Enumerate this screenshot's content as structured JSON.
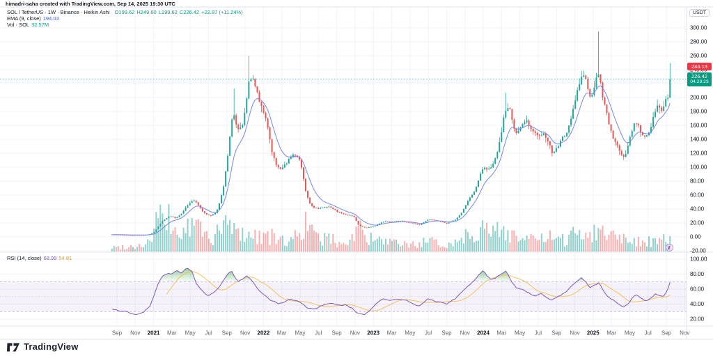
{
  "attribution": "himadri-saha created with TradingView.com, Sep 14, 2025 19:30 UTC",
  "legend": {
    "title": "SOL / TetherUS · 1W · Binance · Heikin Ashi",
    "ohlc": {
      "o_label": "O",
      "o_value": "199.62",
      "h_label": "H",
      "h_value": "249.60",
      "l_label": "L",
      "l_value": "199.62",
      "c_label": "C",
      "c_value": "226.42",
      "change": "+22.87 (+11.24%)"
    },
    "ema": {
      "label": "EMA (9, close)",
      "value": "194.03"
    },
    "vol": {
      "label": "Vol · SOL",
      "value": "32.57M"
    }
  },
  "rsi_legend": {
    "label": "RSI (14, close)",
    "value": "68.99",
    "ma_value": "54.81"
  },
  "price_axis": {
    "currency": "USDT",
    "ticks": [
      "300.00",
      "280.00",
      "260.00",
      "240.00",
      "220.00",
      "200.00",
      "180.00",
      "160.00",
      "140.00",
      "120.00",
      "100.00",
      "80.00",
      "60.00",
      "40.00",
      "20.00",
      "0.00",
      "-20.00"
    ],
    "last_price_tag": "244.13",
    "current_tag": "226.42",
    "countdown": "04:29:23"
  },
  "rsi_axis": {
    "ticks": [
      "100.00",
      "80.00",
      "60.00",
      "40.00",
      "20.00"
    ]
  },
  "time_axis": {
    "labels": [
      {
        "label": "Sep",
        "m": 1
      },
      {
        "label": "Nov",
        "m": 3
      },
      {
        "label": "2021",
        "m": 5,
        "bold": true
      },
      {
        "label": "Mar",
        "m": 7
      },
      {
        "label": "May",
        "m": 9
      },
      {
        "label": "Jul",
        "m": 11
      },
      {
        "label": "Sep",
        "m": 13
      },
      {
        "label": "Nov",
        "m": 15
      },
      {
        "label": "2022",
        "m": 17,
        "bold": true
      },
      {
        "label": "Mar",
        "m": 19
      },
      {
        "label": "May",
        "m": 21
      },
      {
        "label": "Jul",
        "m": 23
      },
      {
        "label": "Sep",
        "m": 25
      },
      {
        "label": "Nov",
        "m": 27
      },
      {
        "label": "2023",
        "m": 29,
        "bold": true
      },
      {
        "label": "Mar",
        "m": 31
      },
      {
        "label": "May",
        "m": 33
      },
      {
        "label": "Jul",
        "m": 35
      },
      {
        "label": "Sep",
        "m": 37
      },
      {
        "label": "Nov",
        "m": 39
      },
      {
        "label": "2024",
        "m": 41,
        "bold": true
      },
      {
        "label": "Mar",
        "m": 43
      },
      {
        "label": "May",
        "m": 45
      },
      {
        "label": "Jul",
        "m": 47
      },
      {
        "label": "Sep",
        "m": 49
      },
      {
        "label": "Nov",
        "m": 51
      },
      {
        "label": "2025",
        "m": 53,
        "bold": true
      },
      {
        "label": "Mar",
        "m": 55
      },
      {
        "label": "May",
        "m": 57
      },
      {
        "label": "Jul",
        "m": 59
      },
      {
        "label": "Sep",
        "m": 61
      },
      {
        "label": "Nov",
        "m": 63
      }
    ]
  },
  "footer": {
    "brand": "TradingView"
  },
  "colors": {
    "up": "#26a69a",
    "down": "#ef5350",
    "vol_up": "rgba(38,166,154,0.5)",
    "vol_down": "rgba(239,83,80,0.45)",
    "ema": "#6c7ef2",
    "ema_value_text": "#2962ff",
    "grid": "#f0f3fa",
    "axis_border": "#e0e3eb",
    "text": "#131722",
    "muted": "#5d606b",
    "tag_red": "#f23645",
    "tag_teal": "#089981",
    "rsi": "#7e57c2",
    "rsi_ma": "#f4c150",
    "rsi_band_fill": "rgba(126,87,194,0.08)",
    "rsi_band_line": "rgba(126,87,194,0.5)",
    "overbought_green": "#4caf50",
    "marker_purple": "#ab47bc"
  },
  "chart_data": {
    "type": "candlestick",
    "style": "heikin-ashi",
    "symbol": "SOL / TetherUS",
    "exchange": "Binance",
    "interval": "1W",
    "ylim": [
      -20,
      300
    ],
    "price_step": 20,
    "x_range": [
      "Aug 2020",
      "Nov 2025"
    ],
    "keyframe_unit": "months since Aug 2020",
    "last_candle": {
      "open": 199.62,
      "high": 249.6,
      "low": 199.62,
      "close": 226.42,
      "change": 22.87,
      "change_pct": 11.24
    },
    "ema": {
      "length": 9,
      "source": "close",
      "last": 194.03
    },
    "volume": {
      "label": "Vol · SOL",
      "last": "32.57M"
    },
    "rsi": {
      "length": 14,
      "source": "close",
      "last": 68.99,
      "ma_last": 54.81,
      "upper_band": 70,
      "lower_band": 30,
      "middle": 50
    },
    "close_keyframes": [
      [
        0.5,
        3.4
      ],
      [
        2,
        2.6
      ],
      [
        4,
        2.6
      ],
      [
        4.7,
        4.5
      ],
      [
        5,
        7
      ],
      [
        5.5,
        16
      ],
      [
        6,
        25
      ],
      [
        6.8,
        30
      ],
      [
        7.3,
        26
      ],
      [
        8,
        34
      ],
      [
        8.8,
        48
      ],
      [
        9.3,
        55
      ],
      [
        9.8,
        44
      ],
      [
        10.3,
        36
      ],
      [
        11,
        30
      ],
      [
        11.6,
        33
      ],
      [
        12,
        42
      ],
      [
        12.6,
        75
      ],
      [
        13,
        115
      ],
      [
        13.4,
        165
      ],
      [
        13.7,
        185
      ],
      [
        14.1,
        152
      ],
      [
        14.6,
        158
      ],
      [
        15,
        185
      ],
      [
        15.4,
        232
      ],
      [
        15.8,
        225
      ],
      [
        16.2,
        205
      ],
      [
        16.8,
        182
      ],
      [
        17.3,
        160
      ],
      [
        17.9,
        118
      ],
      [
        18.4,
        100
      ],
      [
        19,
        98
      ],
      [
        19.6,
        108
      ],
      [
        20.2,
        122
      ],
      [
        20.8,
        112
      ],
      [
        21.2,
        92
      ],
      [
        21.6,
        58
      ],
      [
        22.2,
        42
      ],
      [
        23,
        40
      ],
      [
        24,
        44
      ],
      [
        25,
        36
      ],
      [
        26,
        32
      ],
      [
        26.8,
        30
      ],
      [
        27.3,
        16
      ],
      [
        28,
        13
      ],
      [
        29,
        15
      ],
      [
        30,
        22
      ],
      [
        31,
        22
      ],
      [
        32,
        23
      ],
      [
        33,
        20
      ],
      [
        34,
        17
      ],
      [
        35,
        26
      ],
      [
        36,
        23
      ],
      [
        37,
        19
      ],
      [
        38,
        26
      ],
      [
        38.8,
        40
      ],
      [
        39.4,
        56
      ],
      [
        40,
        65
      ],
      [
        40.6,
        92
      ],
      [
        41,
        100
      ],
      [
        41.5,
        94
      ],
      [
        42,
        105
      ],
      [
        42.6,
        130
      ],
      [
        43.2,
        175
      ],
      [
        43.6,
        192
      ],
      [
        44,
        175
      ],
      [
        44.5,
        142
      ],
      [
        45.2,
        162
      ],
      [
        45.7,
        170
      ],
      [
        46.2,
        152
      ],
      [
        47,
        140
      ],
      [
        47.5,
        154
      ],
      [
        48,
        138
      ],
      [
        48.5,
        118
      ],
      [
        49,
        130
      ],
      [
        50,
        150
      ],
      [
        50.8,
        185
      ],
      [
        51.4,
        222
      ],
      [
        51.8,
        235
      ],
      [
        52.3,
        215
      ],
      [
        52.7,
        196
      ],
      [
        53.2,
        222
      ],
      [
        53.5,
        248
      ],
      [
        54,
        192
      ],
      [
        54.5,
        172
      ],
      [
        55,
        142
      ],
      [
        55.6,
        128
      ],
      [
        56,
        112
      ],
      [
        56.5,
        118
      ],
      [
        57,
        146
      ],
      [
        57.6,
        168
      ],
      [
        58.1,
        150
      ],
      [
        58.6,
        140
      ],
      [
        59.2,
        158
      ],
      [
        59.7,
        182
      ],
      [
        60.1,
        192
      ],
      [
        60.4,
        178
      ],
      [
        60.8,
        196
      ],
      [
        61.45,
        226.42
      ]
    ],
    "wick_spikes": [
      [
        13.7,
        213
      ],
      [
        15.4,
        260
      ],
      [
        43.4,
        207
      ],
      [
        53.5,
        295
      ]
    ],
    "rsi_keyframes": [
      [
        0.6,
        34
      ],
      [
        1.5,
        31
      ],
      [
        2.5,
        28
      ],
      [
        3.2,
        26
      ],
      [
        4,
        30
      ],
      [
        4.6,
        38
      ],
      [
        5,
        50
      ],
      [
        5.5,
        66
      ],
      [
        6,
        76
      ],
      [
        6.5,
        80
      ],
      [
        7,
        79
      ],
      [
        7.5,
        83
      ],
      [
        8,
        81
      ],
      [
        8.5,
        87
      ],
      [
        8.8,
        89
      ],
      [
        9.2,
        84
      ],
      [
        9.6,
        70
      ],
      [
        10,
        62
      ],
      [
        10.5,
        56
      ],
      [
        11,
        51
      ],
      [
        11.5,
        55
      ],
      [
        12,
        60
      ],
      [
        12.5,
        68
      ],
      [
        13,
        77
      ],
      [
        13.5,
        83
      ],
      [
        13.8,
        76
      ],
      [
        14.2,
        69
      ],
      [
        14.7,
        72
      ],
      [
        15.2,
        76
      ],
      [
        15.7,
        71
      ],
      [
        16.2,
        63
      ],
      [
        16.7,
        57
      ],
      [
        17.2,
        52
      ],
      [
        18,
        44
      ],
      [
        18.7,
        41
      ],
      [
        19.4,
        44
      ],
      [
        20,
        47
      ],
      [
        20.6,
        45
      ],
      [
        21.2,
        40
      ],
      [
        21.8,
        34
      ],
      [
        22.5,
        32
      ],
      [
        23.2,
        37
      ],
      [
        24,
        40
      ],
      [
        25,
        38
      ],
      [
        26,
        37
      ],
      [
        26.7,
        34
      ],
      [
        27.2,
        29
      ],
      [
        28,
        27
      ],
      [
        28.7,
        33
      ],
      [
        29.5,
        41
      ],
      [
        30.2,
        46
      ],
      [
        31,
        44
      ],
      [
        32,
        46
      ],
      [
        33,
        43
      ],
      [
        34,
        39
      ],
      [
        35,
        49
      ],
      [
        36,
        45
      ],
      [
        37,
        41
      ],
      [
        38,
        48
      ],
      [
        38.7,
        57
      ],
      [
        39.3,
        65
      ],
      [
        40,
        72
      ],
      [
        40.6,
        80
      ],
      [
        41,
        85
      ],
      [
        41.4,
        79
      ],
      [
        41.8,
        73
      ],
      [
        42.3,
        76
      ],
      [
        43,
        82
      ],
      [
        43.5,
        85
      ],
      [
        44,
        74
      ],
      [
        44.6,
        62
      ],
      [
        45.3,
        60
      ],
      [
        46,
        56
      ],
      [
        46.6,
        52
      ],
      [
        47.3,
        54
      ],
      [
        48,
        48
      ],
      [
        48.5,
        44
      ],
      [
        49,
        48
      ],
      [
        50,
        55
      ],
      [
        50.7,
        63
      ],
      [
        51.3,
        70
      ],
      [
        51.7,
        74
      ],
      [
        52.2,
        68
      ],
      [
        52.7,
        60
      ],
      [
        53.2,
        64
      ],
      [
        53.6,
        67
      ],
      [
        54.2,
        56
      ],
      [
        55,
        47
      ],
      [
        55.7,
        41
      ],
      [
        56.2,
        36
      ],
      [
        56.8,
        39
      ],
      [
        57.3,
        48
      ],
      [
        57.8,
        52
      ],
      [
        58.3,
        48
      ],
      [
        58.8,
        44
      ],
      [
        59.3,
        49
      ],
      [
        59.8,
        54
      ],
      [
        60.2,
        52
      ],
      [
        60.6,
        49
      ],
      [
        61,
        57
      ],
      [
        61.45,
        68.99
      ]
    ],
    "volume_keyframes": [
      [
        0.5,
        6
      ],
      [
        2,
        7
      ],
      [
        3,
        8
      ],
      [
        4,
        10
      ],
      [
        4.8,
        18
      ],
      [
        5.2,
        40
      ],
      [
        5.6,
        62
      ],
      [
        6,
        34
      ],
      [
        6.6,
        48
      ],
      [
        7.2,
        30
      ],
      [
        8,
        26
      ],
      [
        8.6,
        32
      ],
      [
        9.2,
        36
      ],
      [
        9.7,
        42
      ],
      [
        10.3,
        30
      ],
      [
        11,
        20
      ],
      [
        11.8,
        22
      ],
      [
        12.4,
        34
      ],
      [
        13,
        40
      ],
      [
        13.6,
        36
      ],
      [
        14.2,
        26
      ],
      [
        15,
        28
      ],
      [
        15.6,
        24
      ],
      [
        16.4,
        22
      ],
      [
        17,
        26
      ],
      [
        17.8,
        22
      ],
      [
        18.6,
        16
      ],
      [
        19.4,
        15
      ],
      [
        20.2,
        18
      ],
      [
        21,
        30
      ],
      [
        21.5,
        44
      ],
      [
        22.2,
        28
      ],
      [
        23,
        18
      ],
      [
        24,
        20
      ],
      [
        25,
        14
      ],
      [
        26,
        13
      ],
      [
        26.8,
        22
      ],
      [
        27.3,
        40
      ],
      [
        28,
        22
      ],
      [
        29,
        16
      ],
      [
        30,
        15
      ],
      [
        31,
        12
      ],
      [
        32,
        11
      ],
      [
        33,
        10
      ],
      [
        34,
        11
      ],
      [
        35,
        15
      ],
      [
        36,
        11
      ],
      [
        37,
        10
      ],
      [
        38,
        14
      ],
      [
        39,
        24
      ],
      [
        40,
        30
      ],
      [
        40.6,
        34
      ],
      [
        41,
        32
      ],
      [
        42,
        26
      ],
      [
        43,
        34
      ],
      [
        43.6,
        30
      ],
      [
        44.2,
        26
      ],
      [
        45,
        20
      ],
      [
        46,
        18
      ],
      [
        47,
        16
      ],
      [
        48,
        22
      ],
      [
        49,
        15
      ],
      [
        50,
        17
      ],
      [
        51,
        28
      ],
      [
        51.7,
        32
      ],
      [
        52.4,
        26
      ],
      [
        53.2,
        30
      ],
      [
        54,
        32
      ],
      [
        54.8,
        26
      ],
      [
        55.6,
        22
      ],
      [
        56.2,
        26
      ],
      [
        57,
        20
      ],
      [
        58,
        15
      ],
      [
        59,
        16
      ],
      [
        60,
        14
      ],
      [
        61,
        17
      ],
      [
        61.45,
        22
      ]
    ]
  }
}
